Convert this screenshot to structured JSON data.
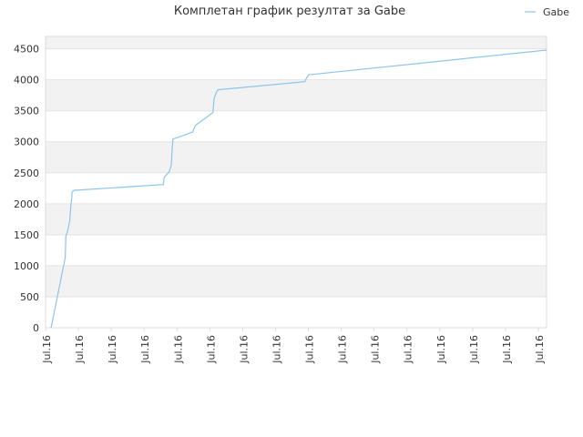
{
  "chart_data": {
    "type": "line",
    "title": "Комплетан график резултат за Gabe",
    "xlabel": "",
    "ylabel": "",
    "ylim": [
      0,
      4700
    ],
    "yticks": [
      0,
      500,
      1000,
      1500,
      2000,
      2500,
      3000,
      3500,
      4000,
      4500
    ],
    "xticks": [
      "Jul.16",
      "Jul.16",
      "Jul.16",
      "Jul.16",
      "Jul.16",
      "Jul.16",
      "Jul.16",
      "Jul.16",
      "Jul.16",
      "Jul.16",
      "Jul.16",
      "Jul.16",
      "Jul.16",
      "Jul.16",
      "Jul.16",
      "Jul.16"
    ],
    "xlim": [
      0,
      15.3
    ],
    "grid": true,
    "legend": "top-right",
    "colors": {
      "series": "#8cc4ec",
      "band": "#f2f2f2"
    },
    "series": [
      {
        "name": "Gabe",
        "x": [
          0.17,
          0.6,
          0.62,
          0.67,
          0.74,
          0.75,
          0.78,
          0.8,
          0.81,
          0.88,
          0.9,
          0.95,
          3.6,
          3.62,
          3.66,
          3.78,
          3.84,
          3.87,
          3.89,
          3.9,
          3.93,
          4.5,
          4.52,
          4.59,
          5.11,
          5.15,
          5.22,
          5.27,
          7.92,
          7.94,
          8.03,
          15.3
        ],
        "y": [
          0,
          1130,
          1480,
          1550,
          1730,
          1820,
          2000,
          2090,
          2190,
          2220,
          2220,
          2220,
          2310,
          2420,
          2450,
          2520,
          2620,
          2900,
          3030,
          3050,
          3050,
          3160,
          3200,
          3270,
          3470,
          3700,
          3800,
          3840,
          3970,
          4000,
          4080,
          4480
        ]
      }
    ]
  }
}
